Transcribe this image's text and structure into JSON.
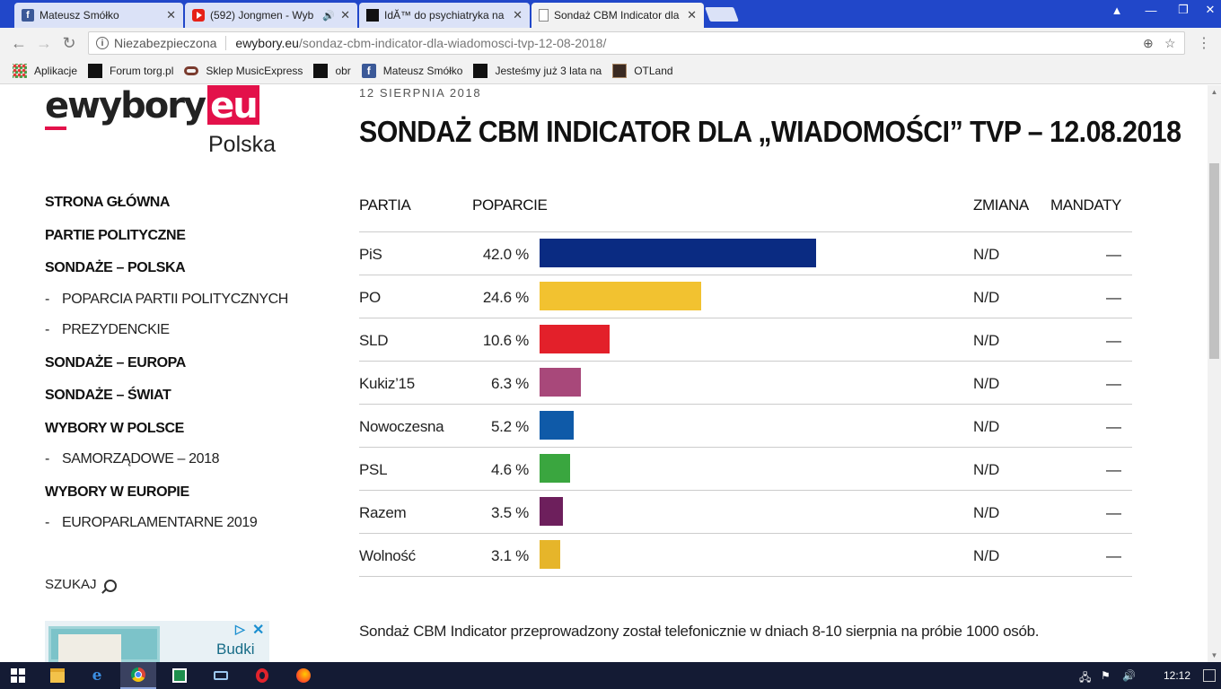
{
  "browser": {
    "tabs": [
      {
        "title": "Mateusz Smółko",
        "icon": "facebook-icon",
        "color": "#3b5998"
      },
      {
        "title": "(592) Jongmen - Wyb",
        "icon": "youtube-icon",
        "color": "#e62117",
        "audio": "🔊"
      },
      {
        "title": "IdĂ™ do psychiatryka na",
        "icon": "torg-icon",
        "color": "#111111"
      },
      {
        "title": "Sondaż CBM Indicator dla",
        "icon": "page-icon",
        "color": "#888888"
      }
    ],
    "tab_close": "✕",
    "omnibox": {
      "security_label": "Niezabezpieczona",
      "host": "ewybory.eu",
      "path": "/sondaz-cbm-indicator-dla-wiadomosci-tvp-12-08-2018/"
    },
    "bookmarks": [
      {
        "label": "Aplikacje",
        "icon": "apps-grid-icon"
      },
      {
        "label": "Forum torg.pl",
        "icon": "torg-icon"
      },
      {
        "label": "Sklep MusicExpress",
        "icon": "musicexpress-icon"
      },
      {
        "label": "obr",
        "icon": "torg-icon"
      },
      {
        "label": "Mateusz Smółko",
        "icon": "facebook-icon"
      },
      {
        "label": "Jesteśmy już 3 lata na",
        "icon": "torg-icon"
      },
      {
        "label": "OTLand",
        "icon": "otland-icon"
      }
    ]
  },
  "site": {
    "logo_main": "ewybory",
    "logo_eu": "eu",
    "logo_sub": "Polska",
    "nav": [
      {
        "label": "STRONA GŁÓWNA",
        "type": "main"
      },
      {
        "label": "PARTIE POLITYCZNE",
        "type": "main"
      },
      {
        "label": "SONDAŻE – POLSKA",
        "type": "main"
      },
      {
        "label": "POPARCIA PARTII POLITYCZNYCH",
        "type": "sub"
      },
      {
        "label": "PREZYDENCKIE",
        "type": "sub"
      },
      {
        "label": "SONDAŻE – EUROPA",
        "type": "main"
      },
      {
        "label": "SONDAŻE – ŚWIAT",
        "type": "main"
      },
      {
        "label": "WYBORY W POLSCE",
        "type": "main"
      },
      {
        "label": "SAMORZĄDOWE – 2018",
        "type": "sub"
      },
      {
        "label": "WYBORY W EUROPIE",
        "type": "main"
      },
      {
        "label": "EUROPARLAMENTARNE 2019",
        "type": "sub"
      }
    ],
    "nav_dash": "-",
    "search_label": "SZUKAJ",
    "ad": {
      "text": "Budki",
      "choices": "▷",
      "close": "✕"
    }
  },
  "article": {
    "date": "12 SIERPNIA 2018",
    "title": "SONDAŻ CBM INDICATOR DLA „WIADOMOŚCI” TVP – 12.08.2018",
    "columns": {
      "party": "PARTIA",
      "support": "POPARCIE",
      "change": "ZMIANA",
      "seats": "MANDATY"
    },
    "note": "Sondaż CBM Indicator przeprowadzony został telefonicznie w dniach 8-10 sierpnia na próbie 1000 osób."
  },
  "chart_data": {
    "type": "bar",
    "categories": [
      "PiS",
      "PO",
      "SLD",
      "Kukiz’15",
      "Nowoczesna",
      "PSL",
      "Razem",
      "Wolność"
    ],
    "values": [
      42.0,
      24.6,
      10.6,
      6.3,
      5.2,
      4.6,
      3.5,
      3.1
    ],
    "value_labels": [
      "42.0 %",
      "24.6 %",
      "10.6 %",
      "6.3 %",
      "5.2 %",
      "4.6 %",
      "3.5 %",
      "3.1 %"
    ],
    "colors": [
      "#0a2b82",
      "#f2c230",
      "#e3202a",
      "#a8487a",
      "#0f5aa8",
      "#3aa63f",
      "#6d1f5c",
      "#e6b52a"
    ],
    "change": [
      "N/D",
      "N/D",
      "N/D",
      "N/D",
      "N/D",
      "N/D",
      "N/D",
      "N/D"
    ],
    "seats": [
      "—",
      "—",
      "—",
      "—",
      "—",
      "—",
      "—",
      "—"
    ]
  },
  "taskbar": {
    "clock": "12:12",
    "apps": [
      "start-icon",
      "file-explorer-icon",
      "edge-icon",
      "chrome-icon",
      "excel-icon",
      "keyboard-icon",
      "opera-icon",
      "firefox-icon"
    ]
  }
}
